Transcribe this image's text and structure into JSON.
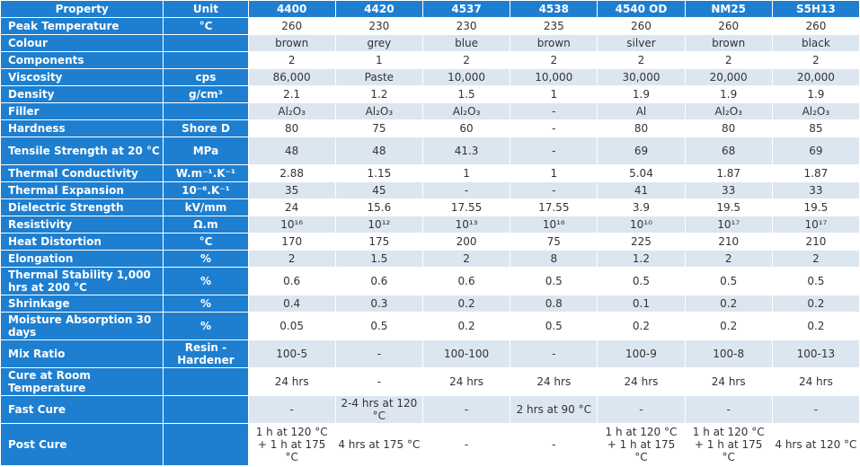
{
  "headers": [
    "Property",
    "Unit",
    "4400",
    "4420",
    "4537",
    "4538",
    "4540 OD",
    "NM25",
    "S5H13"
  ],
  "rows": [
    {
      "property": "Peak Temperature",
      "unit": "°C",
      "values": [
        "260",
        "230",
        "230",
        "235",
        "260",
        "260",
        "260"
      ],
      "h": 19
    },
    {
      "property": "Colour",
      "unit": "",
      "values": [
        "brown",
        "grey",
        "blue",
        "brown",
        "silver",
        "brown",
        "black"
      ],
      "h": 19
    },
    {
      "property": "Components",
      "unit": "",
      "values": [
        "2",
        "1",
        "2",
        "2",
        "2",
        "2",
        "2"
      ],
      "h": 19
    },
    {
      "property": "Viscosity",
      "unit": "cps",
      "values": [
        "86,000",
        "Paste",
        "10,000",
        "10,000",
        "30,000",
        "20,000",
        "20,000"
      ],
      "h": 19
    },
    {
      "property": "Density",
      "unit": "g/cm³",
      "values": [
        "2.1",
        "1.2",
        "1.5",
        "1",
        "1.9",
        "1.9",
        "1.9"
      ],
      "h": 19
    },
    {
      "property": "Filler",
      "unit": "",
      "values": [
        "Al₂O₃",
        "Al₂O₃",
        "Al₂O₃",
        "-",
        "Al",
        "Al₂O₃",
        "Al₂O₃"
      ],
      "h": 19
    },
    {
      "property": "Hardness",
      "unit": "Shore D",
      "values": [
        "80",
        "75",
        "60",
        "-",
        "80",
        "80",
        "85"
      ],
      "h": 19
    },
    {
      "property": "Tensile Strength at 20 °C",
      "unit": "MPa",
      "values": [
        "48",
        "48",
        "41.3",
        "-",
        "69",
        "68",
        "69"
      ],
      "h": 31
    },
    {
      "property": "Thermal Conductivity",
      "unit": "W.m⁻¹.K⁻¹",
      "values": [
        "2.88",
        "1.15",
        "1",
        "1",
        "5.04",
        "1.87",
        "1.87"
      ],
      "h": 19
    },
    {
      "property": "Thermal Expansion",
      "unit": "10⁻⁶.K⁻¹",
      "values": [
        "35",
        "45",
        "-",
        "-",
        "41",
        "33",
        "33"
      ],
      "h": 19
    },
    {
      "property": "Dielectric Strength",
      "unit": "kV/mm",
      "values": [
        "24",
        "15.6",
        "17.55",
        "17.55",
        "3.9",
        "19.5",
        "19.5"
      ],
      "h": 19
    },
    {
      "property": "Resistivity",
      "unit": "Ω.m",
      "values": [
        "10¹⁶",
        "10¹²",
        "10¹³",
        "10¹⁶",
        "10¹⁰",
        "10¹⁷",
        "10¹⁷"
      ],
      "h": 19
    },
    {
      "property": "Heat Distortion",
      "unit": "°C",
      "values": [
        "170",
        "175",
        "200",
        "75",
        "225",
        "210",
        "210"
      ],
      "h": 19
    },
    {
      "property": "Elongation",
      "unit": "%",
      "values": [
        "2",
        "1.5",
        "2",
        "8",
        "1.2",
        "2",
        "2"
      ],
      "h": 19
    },
    {
      "property": "Thermal Stability 1,000 hrs at 200 °C",
      "unit": "%",
      "values": [
        "0.6",
        "0.6",
        "0.6",
        "0.5",
        "0.5",
        "0.5",
        "0.5"
      ],
      "h": 31
    },
    {
      "property": "Shrinkage",
      "unit": "%",
      "values": [
        "0.4",
        "0.3",
        "0.2",
        "0.8",
        "0.1",
        "0.2",
        "0.2"
      ],
      "h": 19
    },
    {
      "property": "Moisture Absorption 30 days",
      "unit": "%",
      "values": [
        "0.05",
        "0.5",
        "0.2",
        "0.5",
        "0.2",
        "0.2",
        "0.2"
      ],
      "h": 31
    },
    {
      "property": "Mix Ratio",
      "unit": "Resin - Hardener",
      "values": [
        "100-5",
        "-",
        "100-100",
        "-",
        "100-9",
        "100-8",
        "100-13"
      ],
      "h": 31
    },
    {
      "property": "Cure at Room Temperature",
      "unit": "",
      "values": [
        "24 hrs",
        "-",
        "24 hrs",
        "24 hrs",
        "24 hrs",
        "24 hrs",
        "24 hrs"
      ],
      "h": 31
    },
    {
      "property": "Fast Cure",
      "unit": "",
      "values": [
        "-",
        "2-4 hrs at 120 °C",
        "-",
        "2 hrs at 90 °C",
        "-",
        "-",
        "-"
      ],
      "h": 31
    },
    {
      "property": "Post Cure",
      "unit": "",
      "values": [
        "1 h at 120 °C + 1 h at 175 °C",
        "4 hrs at 175 °C",
        "-",
        "-",
        "1 h at 120 °C + 1 h at 175 °C",
        "1 h at 120 °C + 1 h at 175 °C",
        "4 hrs at 120 °C"
      ],
      "h": 47
    }
  ]
}
